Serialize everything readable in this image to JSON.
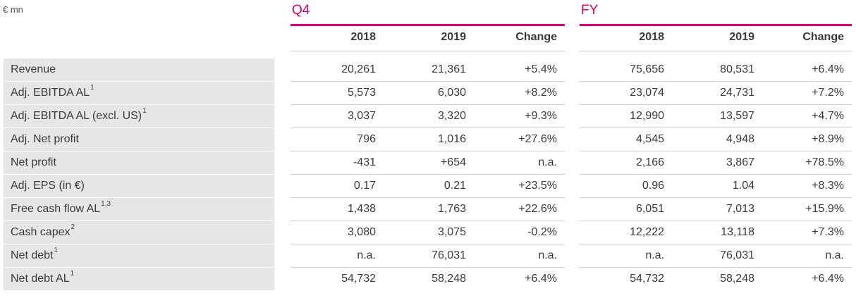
{
  "unit": "€ mn",
  "q4": {
    "title": "Q4",
    "headers": [
      "2018",
      "2019",
      "Change"
    ]
  },
  "fy": {
    "title": "FY",
    "headers": [
      "2018",
      "2019",
      "Change"
    ]
  },
  "rows": [
    {
      "label": "Revenue",
      "sup": "",
      "q4": [
        "20,261",
        "21,361",
        "+5.4%"
      ],
      "fy": [
        "75,656",
        "80,531",
        "+6.4%"
      ]
    },
    {
      "label": "Adj. EBITDA AL",
      "sup": "1",
      "q4": [
        "5,573",
        "6,030",
        "+8.2%"
      ],
      "fy": [
        "23,074",
        "24,731",
        "+7.2%"
      ]
    },
    {
      "label": "Adj. EBITDA AL (excl. US)",
      "sup": "1",
      "q4": [
        "3,037",
        "3,320",
        "+9.3%"
      ],
      "fy": [
        "12,990",
        "13,597",
        "+4.7%"
      ]
    },
    {
      "label": "Adj. Net profit",
      "sup": "",
      "q4": [
        "796",
        "1,016",
        "+27.6%"
      ],
      "fy": [
        "4,545",
        "4,948",
        "+8.9%"
      ]
    },
    {
      "label": "Net profit",
      "sup": "",
      "q4": [
        "-431",
        "+654",
        "n.a."
      ],
      "fy": [
        "2,166",
        "3,867",
        "+78.5%"
      ]
    },
    {
      "label": "Adj. EPS (in €)",
      "sup": "",
      "q4": [
        "0.17",
        "0.21",
        "+23.5%"
      ],
      "fy": [
        "0.96",
        "1.04",
        "+8.3%"
      ]
    },
    {
      "label": "Free cash flow AL",
      "sup": "1,3",
      "q4": [
        "1,438",
        "1,763",
        "+22.6%"
      ],
      "fy": [
        "6,051",
        "7,013",
        "+15.9%"
      ]
    },
    {
      "label": "Cash capex",
      "sup": "2",
      "q4": [
        "3,080",
        "3,075",
        "-0.2%"
      ],
      "fy": [
        "12,222",
        "13,118",
        "+7.3%"
      ]
    },
    {
      "label": "Net debt",
      "sup": "1",
      "q4": [
        "n.a.",
        "76,031",
        "n.a."
      ],
      "fy": [
        "n.a.",
        "76,031",
        "n.a."
      ]
    },
    {
      "label": "Net debt AL",
      "sup": "1",
      "q4": [
        "54,732",
        "58,248",
        "+6.4%"
      ],
      "fy": [
        "54,732",
        "58,248",
        "+6.4%"
      ]
    }
  ],
  "colors": {
    "accent": "#e20074",
    "label_bg": "#e6e6e6"
  }
}
